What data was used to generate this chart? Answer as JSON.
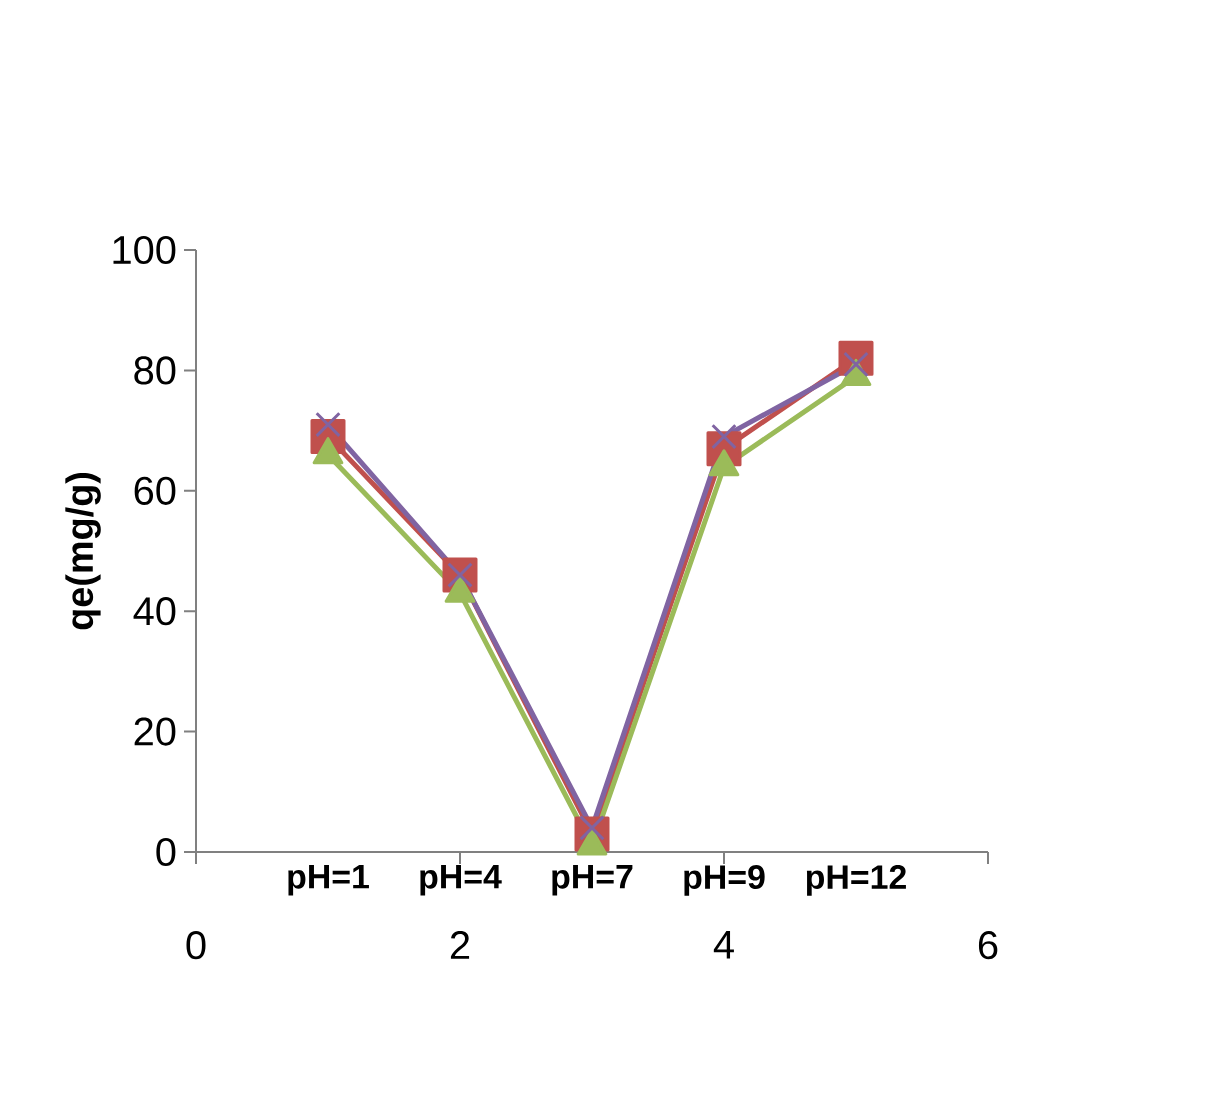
{
  "chart_data": {
    "type": "line",
    "ylabel": "qe(mg/g)",
    "x": [
      1,
      2,
      3,
      4,
      5
    ],
    "xlim": [
      0,
      6
    ],
    "xticks": [
      0,
      2,
      4,
      6
    ],
    "ylim": [
      0,
      100
    ],
    "yticks": [
      0,
      20,
      40,
      60,
      80,
      100
    ],
    "series": [
      {
        "color": "#c0504d",
        "marker": "square",
        "values": [
          69,
          46,
          3,
          67,
          82
        ]
      },
      {
        "color": "#9bbb59",
        "marker": "triangle",
        "values": [
          66,
          43,
          1,
          64,
          79
        ]
      },
      {
        "color": "#8064a2",
        "marker": "cross",
        "values": [
          71,
          46,
          4,
          69,
          81
        ]
      }
    ],
    "annotations": [
      "pH=1",
      "pH=4",
      "pH=7",
      "pH=9",
      "pH=12"
    ]
  }
}
